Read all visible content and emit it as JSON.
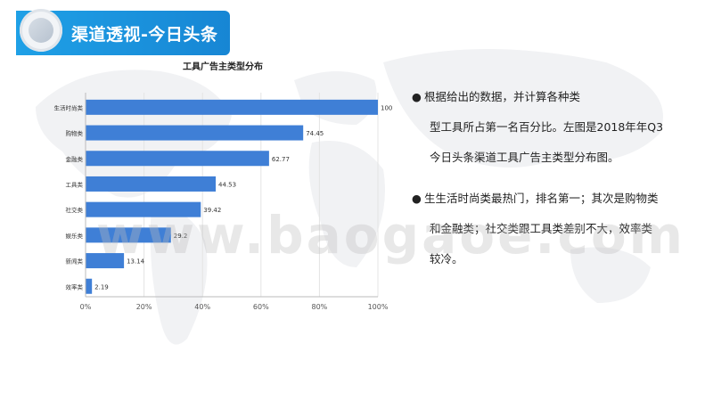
{
  "header": {
    "title": "渠道透视-今日头条"
  },
  "chart_data": {
    "type": "bar",
    "orientation": "horizontal",
    "title": "工具广告主类型分布",
    "categories": [
      "生活时尚类",
      "购物类",
      "金融类",
      "工具类",
      "社交类",
      "娱乐类",
      "新闻类",
      "效率类"
    ],
    "values": [
      100,
      74.45,
      62.77,
      44.53,
      39.42,
      29.2,
      13.14,
      2.19
    ],
    "value_labels": [
      "100",
      "74.45",
      "62.77",
      "44.53",
      "39.42",
      "29.2",
      "13.14",
      "2.19"
    ],
    "xlim": [
      0,
      100
    ],
    "xticks": [
      "0%",
      "20%",
      "40%",
      "60%",
      "80%",
      "100%"
    ],
    "grid": true,
    "bar_color": "#3f7fd6"
  },
  "text_panel": {
    "para1": {
      "line1": "根据给出的数据，并计算各种类",
      "line2": "型工具所占第一名百分比。左图是2018年年Q3",
      "line3": "今日头条渠道工具广告主类型分布图。"
    },
    "para2": {
      "line1": "生生活时尚类最热门，排名第一；其次是购物类",
      "line2": "和金融类；社交类跟工具类差别不大，效率类",
      "line3": "较冷。"
    },
    "bullet": "●"
  },
  "watermark": "www.baogaoe.com"
}
